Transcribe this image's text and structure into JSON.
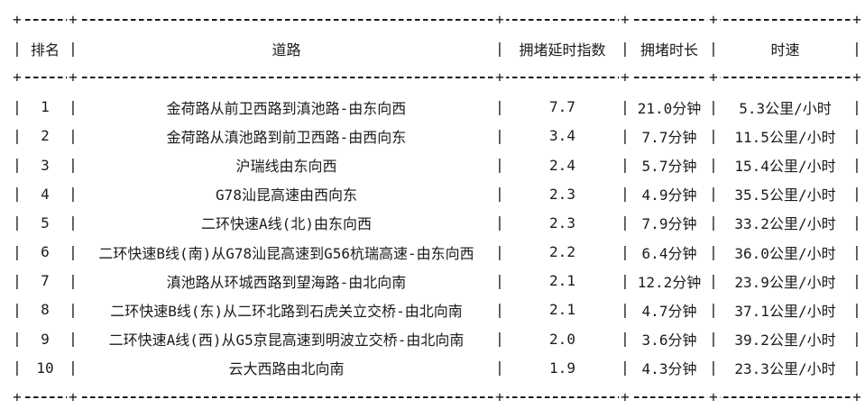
{
  "table": {
    "columns": [
      "排名",
      "道路",
      "拥堵延时指数",
      "拥堵时长",
      "时速"
    ],
    "rows": [
      {
        "rank": "1",
        "road": "金荷路从前卫西路到滇池路-由东向西",
        "delay_index": "7.7",
        "duration": "21.0分钟",
        "speed": "5.3公里/小时"
      },
      {
        "rank": "2",
        "road": "金荷路从滇池路到前卫西路-由西向东",
        "delay_index": "3.4",
        "duration": "7.7分钟",
        "speed": "11.5公里/小时"
      },
      {
        "rank": "3",
        "road": "沪瑞线由东向西",
        "delay_index": "2.4",
        "duration": "5.7分钟",
        "speed": "15.4公里/小时"
      },
      {
        "rank": "4",
        "road": "G78汕昆高速由西向东",
        "delay_index": "2.3",
        "duration": "4.9分钟",
        "speed": "35.5公里/小时"
      },
      {
        "rank": "5",
        "road": "二环快速A线(北)由东向西",
        "delay_index": "2.3",
        "duration": "7.9分钟",
        "speed": "33.2公里/小时"
      },
      {
        "rank": "6",
        "road": "二环快速B线(南)从G78汕昆高速到G56杭瑞高速-由东向西",
        "delay_index": "2.2",
        "duration": "6.4分钟",
        "speed": "36.0公里/小时"
      },
      {
        "rank": "7",
        "road": "滇池路从环城西路到望海路-由北向南",
        "delay_index": "2.1",
        "duration": "12.2分钟",
        "speed": "23.9公里/小时"
      },
      {
        "rank": "8",
        "road": "二环快速B线(东)从二环北路到石虎关立交桥-由北向南",
        "delay_index": "2.1",
        "duration": "4.7分钟",
        "speed": "37.1公里/小时"
      },
      {
        "rank": "9",
        "road": "二环快速A线(西)从G5京昆高速到明波立交桥-由北向南",
        "delay_index": "2.0",
        "duration": "3.6分钟",
        "speed": "39.2公里/小时"
      },
      {
        "rank": "10",
        "road": "云大西路由北向南",
        "delay_index": "1.9",
        "duration": "4.3分钟",
        "speed": "23.3公里/小时"
      }
    ]
  },
  "border_glyphs": {
    "cross": "+",
    "pipe": "|"
  },
  "colors": {
    "text": "#1b1b1b",
    "background": "#ffffff"
  }
}
